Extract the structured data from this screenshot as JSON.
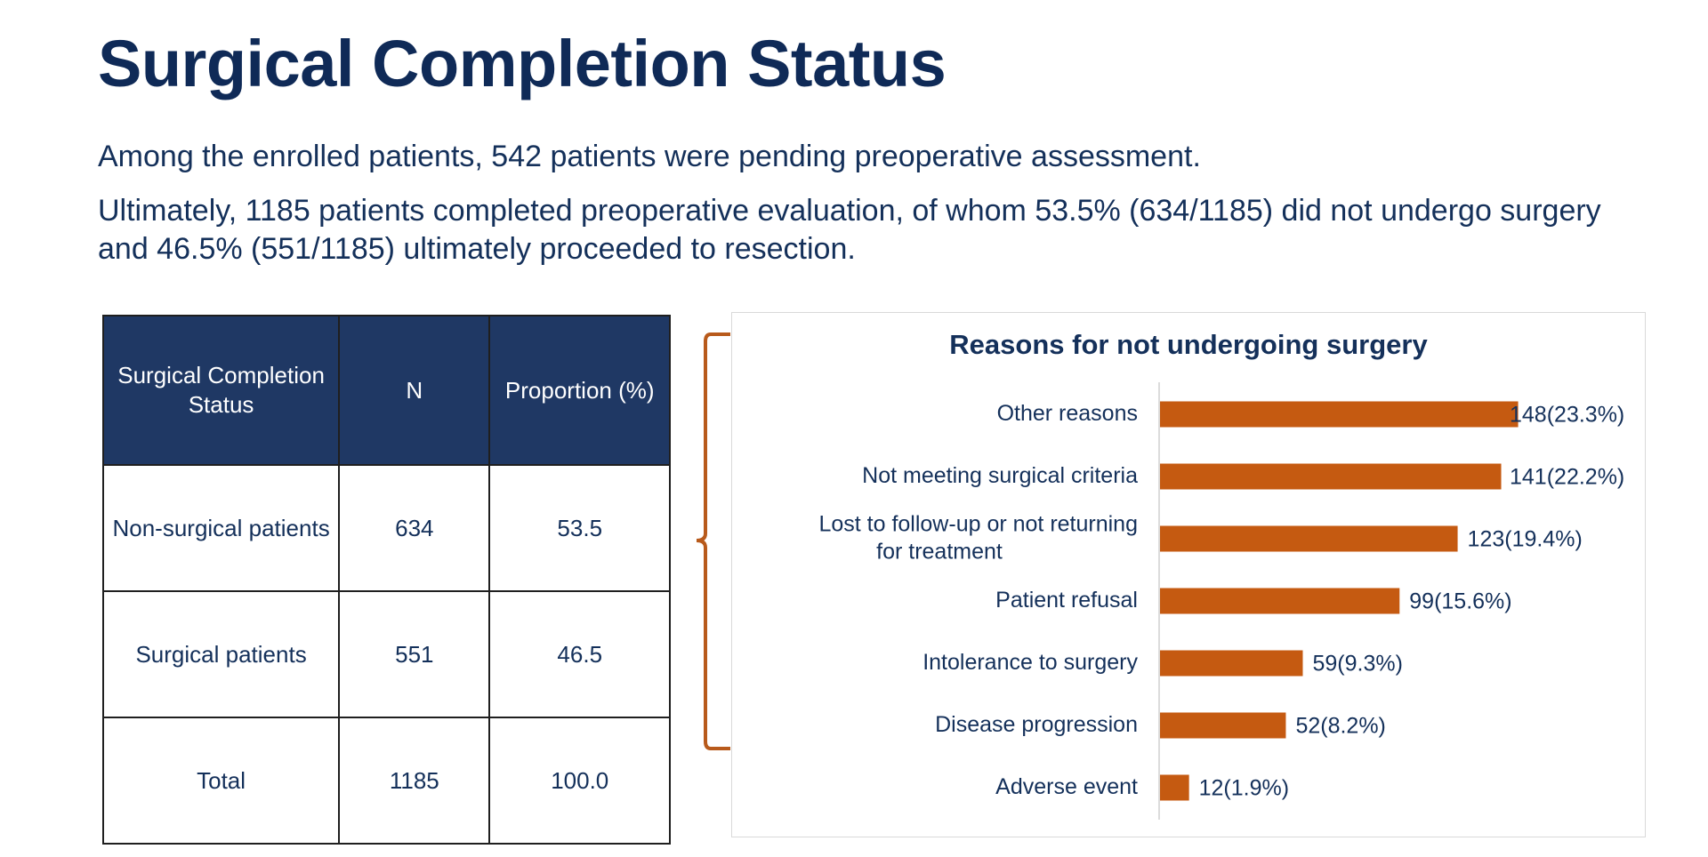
{
  "title": "Surgical Completion Status",
  "paragraphs": [
    "Among the enrolled patients, 542 patients were pending preoperative assessment.",
    "Ultimately, 1185 patients completed preoperative evaluation, of whom 53.5% (634/1185) did not undergo surgery and 46.5% (551/1185) ultimately proceeded to resection."
  ],
  "table": {
    "headers": [
      "Surgical Completion Status",
      "N",
      "Proportion (%)"
    ],
    "rows": [
      [
        "Non-surgical patients",
        "634",
        "53.5"
      ],
      [
        "Surgical patients",
        "551",
        "46.5"
      ],
      [
        "Total",
        "1185",
        "100.0"
      ]
    ],
    "header_color": "#1f3864"
  },
  "bracket_color": "#b85a1b",
  "chart_data": {
    "type": "bar",
    "orientation": "horizontal",
    "title": "Reasons for not undergoing surgery",
    "categories": [
      "Other reasons",
      "Not meeting surgical criteria",
      "Lost to follow-up or not returning for treatment",
      "Patient refusal",
      "Intolerance to surgery",
      "Disease progression",
      "Adverse event"
    ],
    "values": [
      148,
      141,
      123,
      99,
      59,
      52,
      12
    ],
    "data_labels": [
      "148(23.3%)",
      "141(22.2%)",
      "123(19.4%)",
      "99(15.6%)",
      "59(9.3%)",
      "52(8.2%)",
      "12(1.9%)"
    ],
    "xlim": [
      0,
      150
    ],
    "bar_color": "#c55a11",
    "xlabel": "",
    "ylabel": "",
    "grid": false,
    "legend": "none"
  }
}
